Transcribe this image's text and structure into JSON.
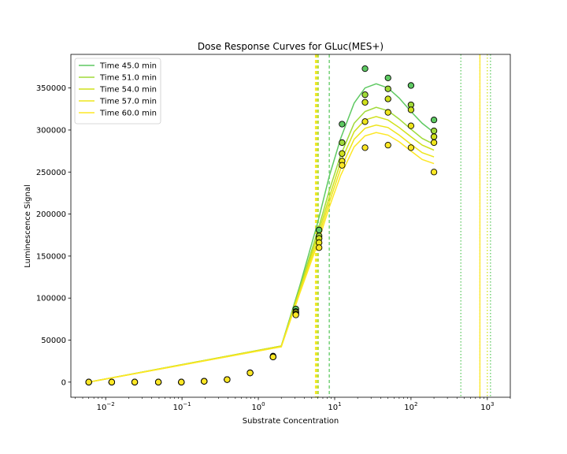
{
  "chart_data": {
    "type": "scatter",
    "title": "Dose Response Curves for GLuc(MES+)",
    "xlabel": "Substrate Concentration",
    "ylabel": "Luminescence Signal",
    "xscale": "log",
    "xlim": [
      0.0035,
      2000
    ],
    "ylim": [
      -18000,
      390000
    ],
    "grid": false,
    "legend_position": "top-left",
    "x_ticks": [
      {
        "value": 0.01,
        "base": "10",
        "exp": "−2"
      },
      {
        "value": 0.1,
        "base": "10",
        "exp": "−1"
      },
      {
        "value": 1,
        "base": "10",
        "exp": "0"
      },
      {
        "value": 10,
        "base": "10",
        "exp": "1"
      },
      {
        "value": 100,
        "base": "10",
        "exp": "2"
      },
      {
        "value": 1000,
        "base": "10",
        "exp": "3"
      }
    ],
    "y_ticks": [
      {
        "value": 0,
        "label": "0"
      },
      {
        "value": 50000,
        "label": "50000"
      },
      {
        "value": 100000,
        "label": "100000"
      },
      {
        "value": 150000,
        "label": "150000"
      },
      {
        "value": 200000,
        "label": "200000"
      },
      {
        "value": 250000,
        "label": "250000"
      },
      {
        "value": 300000,
        "label": "300000"
      },
      {
        "value": 350000,
        "label": "350000"
      }
    ],
    "x": [
      0.006,
      0.012,
      0.024,
      0.049,
      0.098,
      0.195,
      0.39,
      0.78,
      1.56,
      3.1,
      6.25,
      12.5,
      25,
      50,
      100,
      200
    ],
    "series": [
      {
        "name": "Time 45.0 min",
        "color": "#5ec962",
        "points": [
          0,
          0,
          0,
          0,
          0,
          1000,
          3000,
          11000,
          31000,
          87000,
          181000,
          307000,
          373000,
          362000,
          353000,
          312000
        ],
        "curve_x": [
          0.006,
          2,
          3.5,
          6,
          8.5,
          12,
          18,
          25,
          35,
          50,
          70,
          100,
          140,
          200
        ],
        "curve_y": [
          0,
          43000,
          115000,
          190000,
          245000,
          290000,
          332000,
          350000,
          355000,
          350000,
          338000,
          322000,
          308000,
          297000
        ],
        "vlines": [
          {
            "x": 8.5,
            "style": "dashed"
          },
          {
            "x": 450,
            "style": "dotted"
          },
          {
            "x": 1100,
            "style": "dotted"
          }
        ]
      },
      {
        "name": "Time 51.0 min",
        "color": "#a0da39",
        "points": [
          0,
          0,
          0,
          0,
          0,
          1000,
          3000,
          11000,
          30000,
          84000,
          174000,
          285000,
          342000,
          349000,
          330000,
          299000
        ],
        "curve_x": [
          0.006,
          2,
          3.5,
          6,
          8.5,
          12,
          18,
          25,
          35,
          50,
          70,
          100,
          140,
          200
        ],
        "curve_y": [
          0,
          43000,
          112000,
          180000,
          228000,
          270000,
          308000,
          322000,
          327000,
          323000,
          313000,
          301000,
          290000,
          283000
        ],
        "vlines": [
          {
            "x": 6.1,
            "style": "dashed"
          }
        ]
      },
      {
        "name": "Time 54.0 min",
        "color": "#d0e11c",
        "points": [
          0,
          0,
          0,
          0,
          0,
          1000,
          3000,
          11000,
          30000,
          83000,
          171000,
          272000,
          333000,
          337000,
          324000,
          292000
        ],
        "curve_x": [
          0.006,
          2,
          3.5,
          6,
          8.5,
          12,
          18,
          25,
          35,
          50,
          70,
          100,
          140,
          200
        ],
        "curve_y": [
          0,
          43000,
          110000,
          175000,
          220000,
          262000,
          298000,
          312000,
          316000,
          312000,
          303000,
          292000,
          282000,
          276000
        ],
        "vlines": [
          {
            "x": 5.9,
            "style": "dashed"
          },
          {
            "x": 1000,
            "style": "dotted"
          }
        ]
      },
      {
        "name": "Time 57.0 min",
        "color": "#eee51b",
        "points": [
          0,
          0,
          0,
          0,
          0,
          1000,
          3000,
          11000,
          30000,
          81000,
          166000,
          263000,
          310000,
          321000,
          305000,
          285000
        ],
        "curve_x": [
          0.006,
          2,
          3.5,
          6,
          8.5,
          12,
          18,
          25,
          35,
          50,
          70,
          100,
          140,
          200
        ],
        "curve_y": [
          0,
          42000,
          108000,
          170000,
          214000,
          254000,
          289000,
          302000,
          306000,
          303000,
          294000,
          283000,
          273000,
          268000
        ],
        "vlines": [
          {
            "x": 5.7,
            "style": "dashed"
          },
          {
            "x": 800,
            "style": "dotted"
          }
        ]
      },
      {
        "name": "Time 60.0 min",
        "color": "#fde725",
        "points": [
          0,
          0,
          0,
          0,
          0,
          1000,
          3000,
          11000,
          30000,
          80000,
          160000,
          258000,
          279000,
          282000,
          279000,
          250000
        ],
        "curve_x": [
          0.006,
          2,
          3.5,
          6,
          8.5,
          12,
          18,
          25,
          35,
          50,
          70,
          100,
          140,
          200
        ],
        "curve_y": [
          0,
          42000,
          106000,
          165000,
          208000,
          246000,
          280000,
          293000,
          297000,
          294000,
          286000,
          275000,
          265000,
          260000
        ],
        "vlines": [
          {
            "x": 5.6,
            "style": "dashed"
          },
          {
            "x": 800,
            "style": "solid"
          }
        ]
      }
    ]
  }
}
